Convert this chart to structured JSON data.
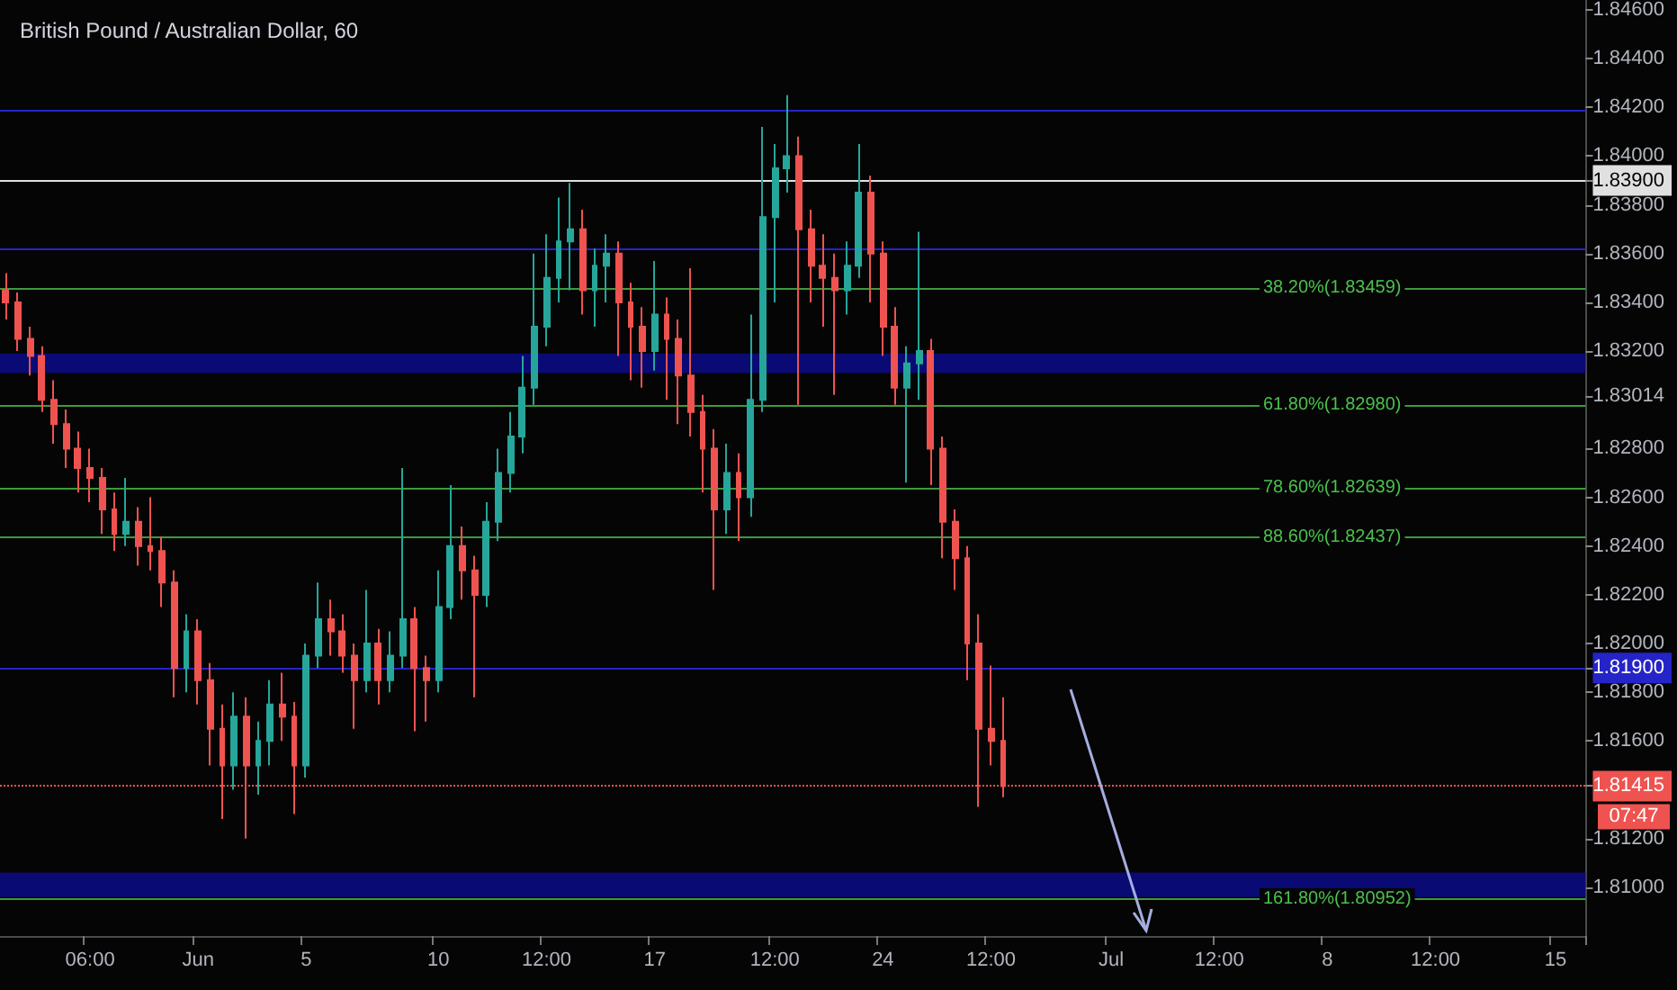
{
  "chart_data": {
    "type": "candlestick",
    "title": "British Pound / Australian Dollar, 60",
    "categories": [
      null,
      null,
      null,
      null,
      null,
      null,
      null,
      "06:00",
      null,
      null,
      null,
      null,
      null,
      null,
      null,
      null,
      "Jun",
      null,
      null,
      null,
      null,
      null,
      null,
      null,
      null,
      "5",
      null,
      null,
      null,
      null,
      null,
      null,
      null,
      null,
      null,
      null,
      "10",
      null,
      null,
      null,
      null,
      null,
      null,
      null,
      null,
      "12:00",
      null,
      null,
      null,
      null,
      null,
      null,
      null,
      null,
      "17",
      null,
      null,
      null,
      null,
      null,
      null,
      null,
      null,
      null,
      "12:00",
      null,
      null,
      null,
      null,
      null,
      null,
      null,
      null,
      "24",
      null,
      null,
      null,
      null,
      null,
      null,
      null,
      null,
      "12:00",
      null,
      null,
      null,
      null,
      null,
      null,
      null,
      null,
      null,
      "Jul",
      null,
      null,
      null,
      null,
      null,
      null,
      null,
      null,
      "12:00",
      null,
      null,
      null,
      null,
      null,
      null,
      null,
      null,
      "8",
      null,
      null,
      null,
      null,
      null,
      null,
      null,
      null,
      "12:00",
      null,
      null,
      null,
      null,
      null,
      null,
      null,
      null,
      null,
      "15",
      null,
      null
    ],
    "ohlc": [
      [
        1.8345,
        1.8352,
        1.8333,
        1.834
      ],
      [
        1.834,
        1.8344,
        1.832,
        1.8325
      ],
      [
        1.8325,
        1.833,
        1.831,
        1.8318
      ],
      [
        1.8318,
        1.8322,
        1.8295,
        1.83
      ],
      [
        1.83,
        1.8308,
        1.8282,
        1.829
      ],
      [
        1.829,
        1.8296,
        1.8272,
        1.828
      ],
      [
        1.828,
        1.8287,
        1.8262,
        1.8272
      ],
      [
        1.8272,
        1.828,
        1.8258,
        1.8268
      ],
      [
        1.8268,
        1.8272,
        1.8245,
        1.8255
      ],
      [
        1.8255,
        1.8262,
        1.8238,
        1.8245
      ],
      [
        1.8245,
        1.8268,
        1.824,
        1.825
      ],
      [
        1.825,
        1.8256,
        1.8232,
        1.824
      ],
      [
        1.824,
        1.826,
        1.823,
        1.8238
      ],
      [
        1.8238,
        1.8244,
        1.8215,
        1.8225
      ],
      [
        1.8225,
        1.823,
        1.8178,
        1.819
      ],
      [
        1.819,
        1.8212,
        1.818,
        1.8205
      ],
      [
        1.8205,
        1.821,
        1.8175,
        1.8185
      ],
      [
        1.8185,
        1.8192,
        1.815,
        1.8165
      ],
      [
        1.8165,
        1.8175,
        1.8128,
        1.815
      ],
      [
        1.815,
        1.818,
        1.814,
        1.817
      ],
      [
        1.817,
        1.8178,
        1.812,
        1.815
      ],
      [
        1.815,
        1.8168,
        1.8138,
        1.816
      ],
      [
        1.816,
        1.8185,
        1.815,
        1.8175
      ],
      [
        1.8175,
        1.8188,
        1.816,
        1.817
      ],
      [
        1.817,
        1.8176,
        1.813,
        1.815
      ],
      [
        1.815,
        1.82,
        1.8145,
        1.8195
      ],
      [
        1.8195,
        1.8225,
        1.819,
        1.821
      ],
      [
        1.821,
        1.8218,
        1.8195,
        1.8205
      ],
      [
        1.8205,
        1.8212,
        1.8188,
        1.8195
      ],
      [
        1.8195,
        1.82,
        1.8165,
        1.8185
      ],
      [
        1.8185,
        1.8222,
        1.818,
        1.82
      ],
      [
        1.82,
        1.8206,
        1.8175,
        1.8185
      ],
      [
        1.8185,
        1.8205,
        1.818,
        1.8195
      ],
      [
        1.8195,
        1.8272,
        1.819,
        1.821
      ],
      [
        1.821,
        1.8215,
        1.8164,
        1.819
      ],
      [
        1.819,
        1.8195,
        1.8168,
        1.8185
      ],
      [
        1.8185,
        1.823,
        1.818,
        1.8215
      ],
      [
        1.8215,
        1.8265,
        1.821,
        1.824
      ],
      [
        1.824,
        1.8248,
        1.8218,
        1.823
      ],
      [
        1.823,
        1.8236,
        1.8178,
        1.822
      ],
      [
        1.822,
        1.8258,
        1.8215,
        1.825
      ],
      [
        1.825,
        1.828,
        1.8242,
        1.827
      ],
      [
        1.827,
        1.8295,
        1.8262,
        1.8285
      ],
      [
        1.8285,
        1.8318,
        1.8278,
        1.8305
      ],
      [
        1.8305,
        1.836,
        1.8298,
        1.833
      ],
      [
        1.833,
        1.8368,
        1.8322,
        1.835
      ],
      [
        1.835,
        1.8383,
        1.834,
        1.8365
      ],
      [
        1.8365,
        1.8389,
        1.8345,
        1.837
      ],
      [
        1.837,
        1.8378,
        1.8335,
        1.8345
      ],
      [
        1.8345,
        1.8362,
        1.833,
        1.8355
      ],
      [
        1.8355,
        1.8368,
        1.834,
        1.836
      ],
      [
        1.836,
        1.8365,
        1.8318,
        1.834
      ],
      [
        1.834,
        1.8348,
        1.8308,
        1.833
      ],
      [
        1.833,
        1.8338,
        1.8305,
        1.832
      ],
      [
        1.832,
        1.8357,
        1.8312,
        1.8335
      ],
      [
        1.8335,
        1.8342,
        1.83,
        1.8325
      ],
      [
        1.8325,
        1.8333,
        1.829,
        1.831
      ],
      [
        1.831,
        1.8354,
        1.8285,
        1.8295
      ],
      [
        1.8295,
        1.8302,
        1.8262,
        1.828
      ],
      [
        1.828,
        1.8288,
        1.8222,
        1.8255
      ],
      [
        1.8255,
        1.8282,
        1.8245,
        1.827
      ],
      [
        1.827,
        1.8278,
        1.8242,
        1.826
      ],
      [
        1.826,
        1.8335,
        1.8252,
        1.83
      ],
      [
        1.83,
        1.8412,
        1.8295,
        1.8375
      ],
      [
        1.8375,
        1.8405,
        1.834,
        1.8395
      ],
      [
        1.8395,
        1.8425,
        1.8385,
        1.84
      ],
      [
        1.84,
        1.8408,
        1.8298,
        1.837
      ],
      [
        1.837,
        1.8378,
        1.834,
        1.8355
      ],
      [
        1.8355,
        1.8368,
        1.833,
        1.835
      ],
      [
        1.835,
        1.836,
        1.8302,
        1.8345
      ],
      [
        1.8345,
        1.8365,
        1.8335,
        1.8355
      ],
      [
        1.8355,
        1.8405,
        1.835,
        1.8385
      ],
      [
        1.8385,
        1.8392,
        1.834,
        1.836
      ],
      [
        1.836,
        1.8365,
        1.8318,
        1.833
      ],
      [
        1.833,
        1.8338,
        1.8298,
        1.8305
      ],
      [
        1.8305,
        1.8322,
        1.8266,
        1.8315
      ],
      [
        1.8315,
        1.8369,
        1.83,
        1.832
      ],
      [
        1.832,
        1.8325,
        1.8265,
        1.828
      ],
      [
        1.828,
        1.8285,
        1.8235,
        1.825
      ],
      [
        1.825,
        1.8255,
        1.8222,
        1.8235
      ],
      [
        1.8235,
        1.824,
        1.8185,
        1.82
      ],
      [
        1.82,
        1.8212,
        1.8133,
        1.8165
      ],
      [
        1.8165,
        1.8191,
        1.815,
        1.816
      ],
      [
        1.816,
        1.8178,
        1.8137,
        1.81415
      ],
      null,
      null,
      null,
      null,
      null,
      null,
      null,
      null,
      null,
      null,
      null,
      null,
      null,
      null,
      null,
      null,
      null,
      null,
      null,
      null,
      null,
      null,
      null,
      null,
      null,
      null,
      null,
      null,
      null,
      null,
      null,
      null,
      null,
      null,
      null,
      null,
      null,
      null,
      null,
      null,
      null,
      null,
      null,
      null,
      null,
      null,
      null,
      null
    ],
    "colors": [
      "#ef5350",
      "#ef5350",
      "#ef5350",
      "#ef5350",
      "#ef5350",
      "#ef5350",
      "#ef5350",
      "#ef5350",
      "#ef5350",
      "#ef5350",
      "#26a69a",
      "#ef5350",
      "#ef5350",
      "#ef5350",
      "#ef5350",
      "#26a69a",
      "#ef5350",
      "#ef5350",
      "#ef5350",
      "#26a69a",
      "#ef5350",
      "#26a69a",
      "#26a69a",
      "#ef5350",
      "#ef5350",
      "#26a69a",
      "#26a69a",
      "#ef5350",
      "#ef5350",
      "#ef5350",
      "#26a69a",
      "#ef5350",
      "#26a69a",
      "#26a69a",
      "#ef5350",
      "#ef5350",
      "#26a69a",
      "#26a69a",
      "#ef5350",
      "#ef5350",
      "#26a69a",
      "#26a69a",
      "#26a69a",
      "#26a69a",
      "#26a69a",
      "#26a69a",
      "#26a69a",
      "#26a69a",
      "#ef5350",
      "#26a69a",
      "#26a69a",
      "#ef5350",
      "#ef5350",
      "#ef5350",
      "#26a69a",
      "#ef5350",
      "#ef5350",
      "#ef5350",
      "#ef5350",
      "#ef5350",
      "#26a69a",
      "#ef5350",
      "#26a69a",
      "#26a69a",
      "#26a69a",
      "#26a69a",
      "#ef5350",
      "#ef5350",
      "#ef5350",
      "#ef5350",
      "#26a69a",
      "#26a69a",
      "#ef5350",
      "#ef5350",
      "#ef5350",
      "#26a69a",
      "#26a69a",
      "#ef5350",
      "#ef5350",
      "#ef5350",
      "#ef5350",
      "#ef5350",
      "#ef5350",
      "#ef5350",
      null,
      null,
      null,
      null,
      null,
      null,
      null,
      null,
      null,
      null,
      null,
      null,
      null,
      null,
      null,
      null,
      null,
      null,
      null,
      null,
      null,
      null,
      null,
      null,
      null,
      null,
      null,
      null,
      null,
      null,
      null,
      null,
      null,
      null,
      null,
      null,
      null,
      null,
      null,
      null,
      null,
      null,
      null,
      null,
      null,
      null,
      null,
      null
    ],
    "ylim": [
      1.808,
      1.8464
    ],
    "yticks": [
      {
        "value": 1.846,
        "label": "1.84600"
      },
      {
        "value": 1.844,
        "label": "1.84400"
      },
      {
        "value": 1.842,
        "label": "1.84200"
      },
      {
        "value": 1.84,
        "label": "1.84000"
      },
      {
        "value": 1.839,
        "label": "1.83900"
      },
      {
        "value": 1.838,
        "label": "1.83800"
      },
      {
        "value": 1.836,
        "label": "1.83600"
      },
      {
        "value": 1.834,
        "label": "1.83400"
      },
      {
        "value": 1.832,
        "label": "1.83200"
      },
      {
        "value": 1.83014,
        "label": "1.83014"
      },
      {
        "value": 1.828,
        "label": "1.82800"
      },
      {
        "value": 1.826,
        "label": "1.82600"
      },
      {
        "value": 1.824,
        "label": "1.82400"
      },
      {
        "value": 1.822,
        "label": "1.82200"
      },
      {
        "value": 1.82,
        "label": "1.82000"
      },
      {
        "value": 1.819,
        "label": "1.81900"
      },
      {
        "value": 1.818,
        "label": "1.81800"
      },
      {
        "value": 1.816,
        "label": "1.81600"
      },
      {
        "value": 1.81415,
        "label": "1.81415"
      },
      {
        "value": 1.812,
        "label": "1.81200"
      },
      {
        "value": 1.81,
        "label": "1.81000"
      }
    ],
    "ref_lines": [
      {
        "axis": "y",
        "value": 1.8419,
        "label": null,
        "color": "#2424c8",
        "line_style": "solid"
      },
      {
        "axis": "y",
        "value": 1.8362,
        "label": null,
        "color": "#2424c8",
        "line_style": "solid"
      },
      {
        "axis": "y",
        "value": 1.839,
        "label": null,
        "color": "#e0e0e0",
        "line_style": "solid"
      },
      {
        "axis": "y",
        "value": 1.83459,
        "label": "38.20%(1.83459)",
        "color": "#3d9a3d",
        "line_style": "solid"
      },
      {
        "axis": "y",
        "value": 1.8298,
        "label": "61.80%(1.82980)",
        "color": "#3d9a3d",
        "line_style": "solid"
      },
      {
        "axis": "y",
        "value": 1.82639,
        "label": "78.60%(1.82639)",
        "color": "#3d9a3d",
        "line_style": "solid"
      },
      {
        "axis": "y",
        "value": 1.82437,
        "label": "88.60%(1.82437)",
        "color": "#3d9a3d",
        "line_style": "solid"
      },
      {
        "axis": "y",
        "value": 1.80952,
        "label": "161.80%(1.80952)",
        "color": "#3d9a3d",
        "line_style": "solid"
      },
      {
        "axis": "y",
        "value": 1.819,
        "label": null,
        "color": "#2424c8",
        "line_style": "solid"
      },
      {
        "axis": "y",
        "value": 1.81415,
        "label": null,
        "color": "#ef5350",
        "line_style": "dotted"
      }
    ],
    "bands": [
      {
        "axis": "y",
        "from": 1.8311,
        "to": 1.8319,
        "color": "#0c0c8a"
      },
      {
        "axis": "y",
        "from": 1.8096,
        "to": 1.8106,
        "color": "#0c0c8a"
      }
    ],
    "annotations": [
      "07:47"
    ],
    "grid": false
  }
}
